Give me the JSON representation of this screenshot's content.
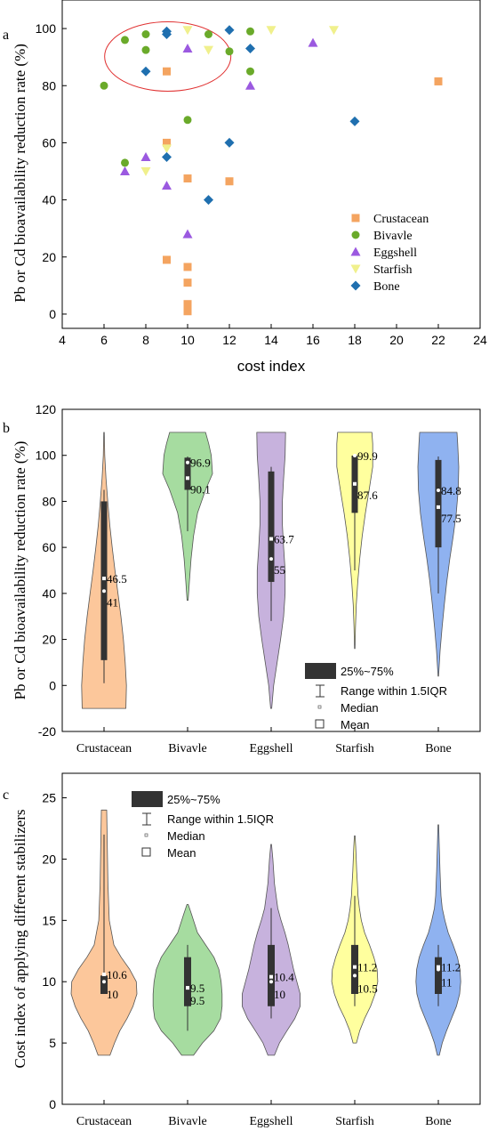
{
  "chart_data": [
    {
      "panel": "a",
      "type": "scatter",
      "xlabel": "cost index",
      "ylabel": "Pb or Cd bioavailability reduction rate (%)",
      "xlim": [
        4,
        24
      ],
      "ylim": [
        -5,
        110
      ],
      "xticks": [
        4,
        6,
        8,
        10,
        12,
        14,
        16,
        18,
        20,
        22,
        24
      ],
      "yticks": [
        0,
        20,
        40,
        60,
        80,
        100
      ],
      "legend_position": "bottom-right",
      "annotation": "red ellipse around high-reduction, low-cost points",
      "series": [
        {
          "name": "Crustacean",
          "marker": "square",
          "color": "#F4A460",
          "x": [
            9,
            9,
            9,
            10,
            10,
            10,
            10,
            10,
            10,
            12,
            22
          ],
          "y": [
            85,
            60,
            19,
            47.5,
            16.5,
            11,
            3.5,
            2.5,
            1,
            46.5,
            81.5
          ]
        },
        {
          "name": "Bivavle",
          "marker": "circle",
          "color": "#6AAA2A",
          "x": [
            6,
            7,
            7,
            8,
            8,
            10,
            11,
            12,
            13,
            13
          ],
          "y": [
            80,
            96,
            53,
            98,
            92.5,
            68,
            98,
            92,
            99,
            85
          ]
        },
        {
          "name": "Eggshell",
          "marker": "triangle-up",
          "color": "#9B59E0",
          "x": [
            7,
            8,
            9,
            10,
            10,
            13,
            16
          ],
          "y": [
            50,
            55,
            45,
            28,
            93,
            80,
            95
          ]
        },
        {
          "name": "Starfish",
          "marker": "triangle-down",
          "color": "#F0F08C",
          "x": [
            8,
            9,
            10,
            11,
            14,
            17
          ],
          "y": [
            50,
            58,
            99.5,
            92.5,
            99.5,
            99.5
          ]
        },
        {
          "name": "Bone",
          "marker": "diamond",
          "color": "#1F6FAF",
          "x": [
            8,
            9,
            9,
            9,
            11,
            12,
            12,
            13,
            18
          ],
          "y": [
            85,
            99,
            98,
            55,
            40,
            60,
            99.5,
            93,
            67.5
          ]
        }
      ]
    },
    {
      "panel": "b",
      "type": "violin",
      "ylabel": "Pb or Cd bioavailability reduction rate (%)",
      "ylim": [
        -20,
        120
      ],
      "yticks": [
        -20,
        0,
        20,
        40,
        60,
        80,
        100,
        120
      ],
      "categories": [
        "Crustacean",
        "Bivavle",
        "Eggshell",
        "Starfish",
        "Bone"
      ],
      "colors": [
        "#FCC79B",
        "#A6DCA0",
        "#C7B2DD",
        "#FFFF9E",
        "#8FB2F0"
      ],
      "violins": [
        {
          "name": "Crustacean",
          "mean": 46.5,
          "median": 41,
          "q1": 11,
          "q3": 80,
          "whisker_low": 1,
          "whisker_high": 85,
          "mean_label": "46.5",
          "median_label": "41",
          "density": [
            [
              -10,
              0.88
            ],
            [
              0,
              0.9
            ],
            [
              10,
              0.85
            ],
            [
              20,
              0.78
            ],
            [
              30,
              0.68
            ],
            [
              40,
              0.56
            ],
            [
              50,
              0.44
            ],
            [
              60,
              0.33
            ],
            [
              70,
              0.23
            ],
            [
              80,
              0.15
            ],
            [
              90,
              0.08
            ],
            [
              100,
              0.03
            ],
            [
              110,
              0.01
            ]
          ]
        },
        {
          "name": "Bivavle",
          "mean": 90.1,
          "median": 96.9,
          "q1": 85,
          "q3": 99,
          "whisker_low": 67,
          "whisker_high": 99.5,
          "mean_label": "90.1",
          "median_label": "96.9",
          "density": [
            [
              37,
              0.02
            ],
            [
              45,
              0.07
            ],
            [
              55,
              0.14
            ],
            [
              65,
              0.24
            ],
            [
              75,
              0.4
            ],
            [
              85,
              0.72
            ],
            [
              92,
              1.0
            ],
            [
              100,
              0.95
            ],
            [
              105,
              0.85
            ],
            [
              110,
              0.72
            ]
          ]
        },
        {
          "name": "Eggshell",
          "mean": 63.7,
          "median": 55,
          "q1": 45,
          "q3": 93,
          "whisker_low": 28,
          "whisker_high": 95,
          "mean_label": "63.7",
          "median_label": "55",
          "density": [
            [
              -10,
              0.02
            ],
            [
              0,
              0.1
            ],
            [
              10,
              0.24
            ],
            [
              20,
              0.38
            ],
            [
              30,
              0.5
            ],
            [
              40,
              0.56
            ],
            [
              50,
              0.56
            ],
            [
              60,
              0.5
            ],
            [
              70,
              0.45
            ],
            [
              80,
              0.45
            ],
            [
              90,
              0.5
            ],
            [
              100,
              0.56
            ],
            [
              110,
              0.58
            ]
          ]
        },
        {
          "name": "Starfish",
          "mean": 87.6,
          "median": 99.9,
          "q1": 75,
          "q3": 99.9,
          "whisker_low": 50,
          "whisker_high": 100,
          "mean_label": "87.6",
          "median_label": "99.9",
          "density": [
            [
              16,
              0.01
            ],
            [
              25,
              0.03
            ],
            [
              35,
              0.06
            ],
            [
              45,
              0.12
            ],
            [
              55,
              0.2
            ],
            [
              65,
              0.3
            ],
            [
              75,
              0.43
            ],
            [
              85,
              0.58
            ],
            [
              95,
              0.72
            ],
            [
              105,
              0.72
            ],
            [
              110,
              0.69
            ]
          ]
        },
        {
          "name": "Bone",
          "mean": 77.5,
          "median": 84.8,
          "q1": 60,
          "q3": 98,
          "whisker_low": 40,
          "whisker_high": 99.5,
          "mean_label": "77.5",
          "median_label": "84.8",
          "density": [
            [
              4,
              0.01
            ],
            [
              15,
              0.07
            ],
            [
              25,
              0.15
            ],
            [
              35,
              0.24
            ],
            [
              45,
              0.34
            ],
            [
              55,
              0.46
            ],
            [
              65,
              0.6
            ],
            [
              75,
              0.72
            ],
            [
              85,
              0.8
            ],
            [
              95,
              0.82
            ],
            [
              105,
              0.78
            ],
            [
              110,
              0.75
            ]
          ]
        }
      ],
      "legend": {
        "box": "25%~75%",
        "range": "Range within 1.5IQR",
        "median": "Median",
        "mean": "Mean"
      }
    },
    {
      "panel": "c",
      "type": "violin",
      "ylabel": "Cost index of applying different stabilizers",
      "ylim": [
        0,
        27
      ],
      "yticks": [
        0,
        5,
        10,
        15,
        20,
        25
      ],
      "categories": [
        "Crustacean",
        "Bivavle",
        "Eggshell",
        "Starfish",
        "Bone"
      ],
      "colors": [
        "#FCC79B",
        "#A6DCA0",
        "#C7B2DD",
        "#FFFF9E",
        "#8FB2F0"
      ],
      "violins": [
        {
          "name": "Crustacean",
          "mean": 10.6,
          "median": 10,
          "q1": 9,
          "q3": 10.5,
          "whisker_low": 9,
          "whisker_high": 22,
          "mean_label": "10.6",
          "median_label": "10",
          "density": [
            [
              4,
              0.18
            ],
            [
              5,
              0.32
            ],
            [
              6,
              0.48
            ],
            [
              7,
              0.7
            ],
            [
              8,
              0.88
            ],
            [
              9,
              1.0
            ],
            [
              10,
              0.98
            ],
            [
              11,
              0.78
            ],
            [
              12,
              0.52
            ],
            [
              13,
              0.3
            ],
            [
              15,
              0.16
            ],
            [
              18,
              0.12
            ],
            [
              21,
              0.1
            ],
            [
              24,
              0.08
            ]
          ]
        },
        {
          "name": "Bivavle",
          "mean": 9.5,
          "median": 9.5,
          "q1": 8,
          "q3": 12,
          "whisker_low": 6,
          "whisker_high": 13,
          "mean_label": "9.5",
          "median_label": "9.5",
          "density": [
            [
              4,
              0.18
            ],
            [
              5,
              0.45
            ],
            [
              6,
              0.8
            ],
            [
              7,
              1.0
            ],
            [
              8,
              1.05
            ],
            [
              9,
              1.05
            ],
            [
              10,
              1.02
            ],
            [
              11,
              0.95
            ],
            [
              12,
              0.8
            ],
            [
              13,
              0.55
            ],
            [
              14,
              0.3
            ],
            [
              15.5,
              0.12
            ],
            [
              16.3,
              0.02
            ]
          ]
        },
        {
          "name": "Eggshell",
          "mean": 10.4,
          "median": 10,
          "q1": 8,
          "q3": 13,
          "whisker_low": 7,
          "whisker_high": 16,
          "mean_label": "10.4",
          "median_label": "10",
          "density": [
            [
              4,
              0.1
            ],
            [
              5,
              0.25
            ],
            [
              6,
              0.48
            ],
            [
              7,
              0.72
            ],
            [
              8,
              0.88
            ],
            [
              9,
              0.88
            ],
            [
              10,
              0.78
            ],
            [
              11,
              0.68
            ],
            [
              12,
              0.6
            ],
            [
              13,
              0.52
            ],
            [
              14,
              0.42
            ],
            [
              15,
              0.3
            ],
            [
              16,
              0.2
            ],
            [
              18,
              0.1
            ],
            [
              20,
              0.05
            ],
            [
              21.2,
              0.01
            ]
          ]
        },
        {
          "name": "Starfish",
          "mean": 11.2,
          "median": 10.5,
          "q1": 9,
          "q3": 13,
          "whisker_low": 8,
          "whisker_high": 17,
          "mean_label": "11.2",
          "median_label": "10.5",
          "density": [
            [
              5,
              0.05
            ],
            [
              6,
              0.15
            ],
            [
              7,
              0.3
            ],
            [
              8,
              0.48
            ],
            [
              9,
              0.62
            ],
            [
              10,
              0.7
            ],
            [
              11,
              0.68
            ],
            [
              12,
              0.58
            ],
            [
              13,
              0.45
            ],
            [
              14,
              0.3
            ],
            [
              15,
              0.2
            ],
            [
              16,
              0.14
            ],
            [
              17,
              0.1
            ],
            [
              18,
              0.08
            ],
            [
              19,
              0.06
            ],
            [
              21,
              0.03
            ],
            [
              21.9,
              0.01
            ]
          ]
        },
        {
          "name": "Bone",
          "mean": 11.2,
          "median": 11,
          "q1": 9,
          "q3": 12,
          "whisker_low": 8,
          "whisker_high": 13,
          "mean_label": "11.2",
          "median_label": "11",
          "density": [
            [
              4,
              0.03
            ],
            [
              5,
              0.12
            ],
            [
              6,
              0.25
            ],
            [
              7,
              0.4
            ],
            [
              8,
              0.55
            ],
            [
              9,
              0.65
            ],
            [
              10,
              0.68
            ],
            [
              11,
              0.66
            ],
            [
              12,
              0.58
            ],
            [
              13,
              0.45
            ],
            [
              14,
              0.3
            ],
            [
              15,
              0.2
            ],
            [
              16,
              0.12
            ],
            [
              17,
              0.08
            ],
            [
              19,
              0.05
            ],
            [
              21,
              0.03
            ],
            [
              22.8,
              0.01
            ]
          ]
        }
      ],
      "legend": {
        "box": "25%~75%",
        "range": "Range within 1.5IQR",
        "median": "Median",
        "mean": "Mean"
      }
    }
  ]
}
